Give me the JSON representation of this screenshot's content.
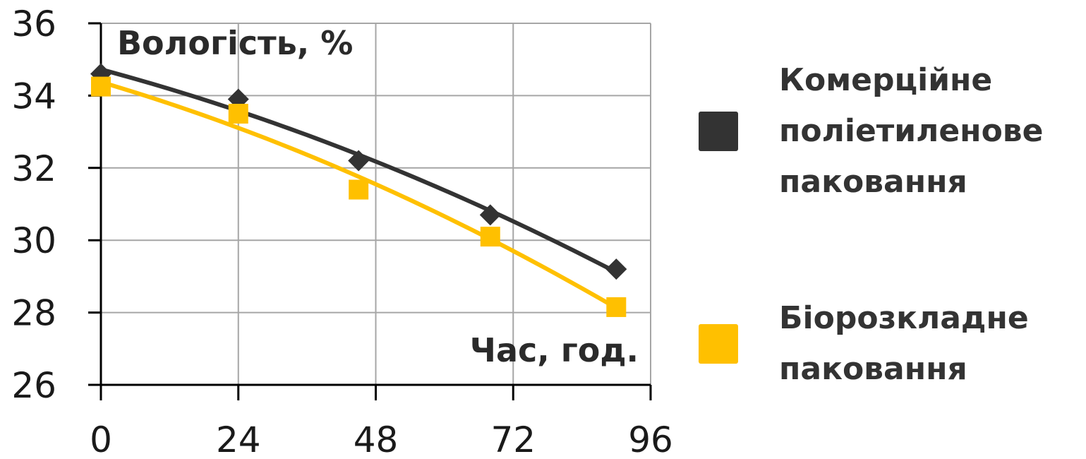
{
  "chart_data": {
    "type": "scatter",
    "ylabel": "Вологість, %",
    "xlabel": "Час, год.",
    "xlim": [
      0,
      96
    ],
    "ylim": [
      26,
      36
    ],
    "xticks": [
      "0",
      "24",
      "48",
      "72",
      "96"
    ],
    "yticks": [
      "26",
      "28",
      "30",
      "32",
      "34",
      "36"
    ],
    "grid": true,
    "legend_position": "right",
    "series": [
      {
        "name": "Комерційне поліетиленове паковання",
        "marker": "diamond",
        "color": "#333333",
        "trendline": "polynomial",
        "x": [
          0,
          24,
          45,
          68,
          90
        ],
        "y": [
          34.6,
          33.9,
          32.2,
          30.7,
          29.2
        ]
      },
      {
        "name": "Біорозкладне паковання",
        "marker": "square",
        "color": "#FFC000",
        "trendline": "polynomial",
        "x": [
          0,
          24,
          45,
          68,
          90
        ],
        "y": [
          34.25,
          33.5,
          31.4,
          30.1,
          28.15
        ]
      }
    ]
  }
}
